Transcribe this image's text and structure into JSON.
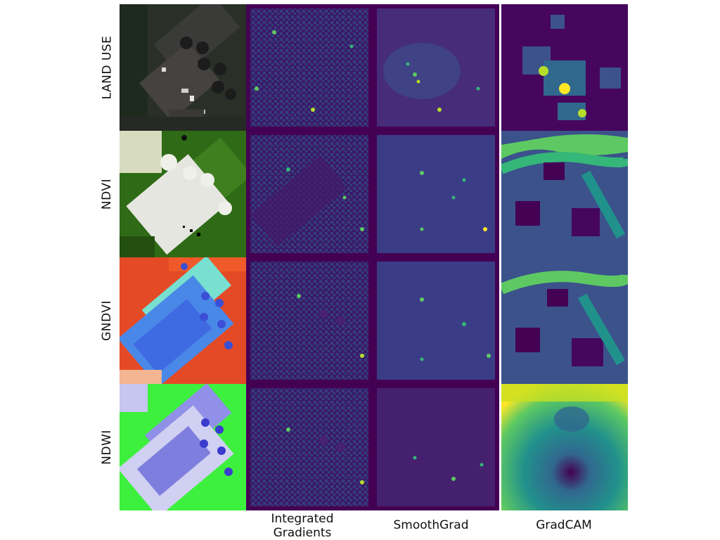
{
  "row_labels": [
    "LAND USE",
    "NDVI",
    "GNDVI",
    "NDWI"
  ],
  "column_labels": {
    "integrated_gradients": [
      "Integrated",
      "Gradients"
    ],
    "smoothgrad": "SmoothGrad",
    "gradcam": "GradCAM"
  },
  "colors": {
    "viridis_dark": "#440154",
    "viridis_mid": "#21918c",
    "viridis_green": "#5ec962",
    "viridis_yellow": "#fde725",
    "background": "#ffffff"
  }
}
